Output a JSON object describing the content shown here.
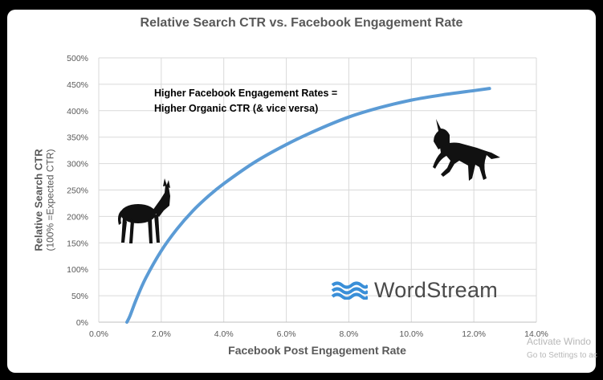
{
  "chart_data": {
    "type": "line",
    "title": "Relative Search CTR vs. Facebook Engagement Rate",
    "xlabel": "Facebook Post Engagement Rate",
    "ylabel": "Relative Search CTR",
    "ylabel_sub": "(100% =Expected CTR)",
    "xlim": [
      0,
      14
    ],
    "ylim": [
      0,
      500
    ],
    "x_ticks": [
      "0.0%",
      "2.0%",
      "4.0%",
      "6.0%",
      "8.0%",
      "10.0%",
      "12.0%",
      "14.0%"
    ],
    "y_ticks": [
      "0%",
      "50%",
      "100%",
      "150%",
      "200%",
      "250%",
      "300%",
      "350%",
      "400%",
      "450%",
      "500%"
    ],
    "grid": true,
    "series": [
      {
        "color": "#5B9BD5",
        "x": [
          0.9,
          1.0,
          1.2,
          1.5,
          2.0,
          2.5,
          3.0,
          3.5,
          4.0,
          5.0,
          6.0,
          7.0,
          8.0,
          9.0,
          10.0,
          11.0,
          12.0,
          12.5
        ],
        "y": [
          0,
          12,
          43,
          83,
          135,
          176,
          210,
          238,
          262,
          303,
          336,
          364,
          388,
          406,
          420,
          430,
          438,
          442
        ]
      }
    ],
    "annotations": [
      "Higher Facebook Engagement Rates =",
      "Higher Organic CTR (& vice versa)"
    ]
  },
  "brand": {
    "name_part1": "Word",
    "name_part2": "Stream"
  },
  "icons": {
    "low": "donkey-icon",
    "high": "unicorn-icon"
  },
  "watermark": {
    "line1": "Activate Windo",
    "line2": "Go to Settings to ac"
  }
}
